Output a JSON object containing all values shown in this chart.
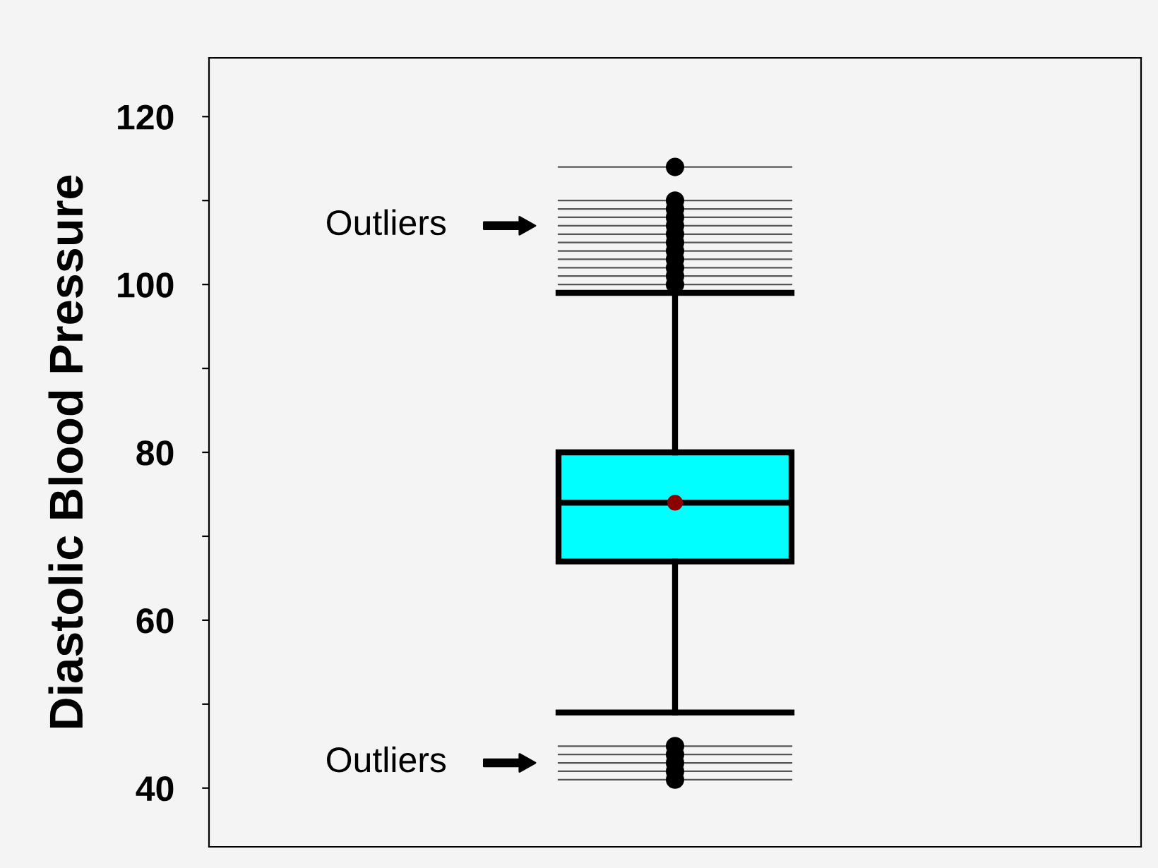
{
  "chart_data": {
    "type": "box",
    "ylabel": "Diastolic Blood Pressure",
    "categories": [
      null
    ],
    "boxes": [
      {
        "low": 49,
        "q1": 67,
        "median": 74,
        "q3": 80,
        "high": 99,
        "mean": 74,
        "outliers": [
          100,
          101,
          102,
          103,
          104,
          105,
          106,
          107,
          108,
          109,
          110,
          114,
          41,
          42,
          43,
          44,
          45
        ]
      }
    ],
    "color": "#00ffff",
    "ylim": [
      33,
      127
    ],
    "yticks": [
      40,
      {
        "value": 50,
        "label": null
      },
      60,
      {
        "value": 70,
        "label": null
      },
      80,
      {
        "value": 90,
        "label": null
      },
      100,
      {
        "value": 110,
        "label": null
      },
      120
    ],
    "annotations": [
      "Outliers",
      "Outliers"
    ],
    "ref_lines": [
      {
        "axis": "y",
        "value": 100,
        "color": "#555555"
      },
      {
        "axis": "y",
        "value": 101,
        "color": "#555555"
      },
      {
        "axis": "y",
        "value": 102,
        "color": "#555555"
      },
      {
        "axis": "y",
        "value": 103,
        "color": "#555555"
      },
      {
        "axis": "y",
        "value": 104,
        "color": "#555555"
      },
      {
        "axis": "y",
        "value": 105,
        "color": "#555555"
      },
      {
        "axis": "y",
        "value": 106,
        "color": "#555555"
      },
      {
        "axis": "y",
        "value": 107,
        "color": "#555555"
      },
      {
        "axis": "y",
        "value": 108,
        "color": "#555555"
      },
      {
        "axis": "y",
        "value": 109,
        "color": "#555555"
      },
      {
        "axis": "y",
        "value": 110,
        "color": "#555555"
      },
      {
        "axis": "y",
        "value": 114,
        "color": "#555555"
      },
      {
        "axis": "y",
        "value": 41,
        "color": "#555555"
      },
      {
        "axis": "y",
        "value": 42,
        "color": "#555555"
      },
      {
        "axis": "y",
        "value": 43,
        "color": "#555555"
      },
      {
        "axis": "y",
        "value": 44,
        "color": "#555555"
      },
      {
        "axis": "y",
        "value": 45,
        "color": "#555555"
      }
    ],
    "grid": false,
    "legend": false
  }
}
